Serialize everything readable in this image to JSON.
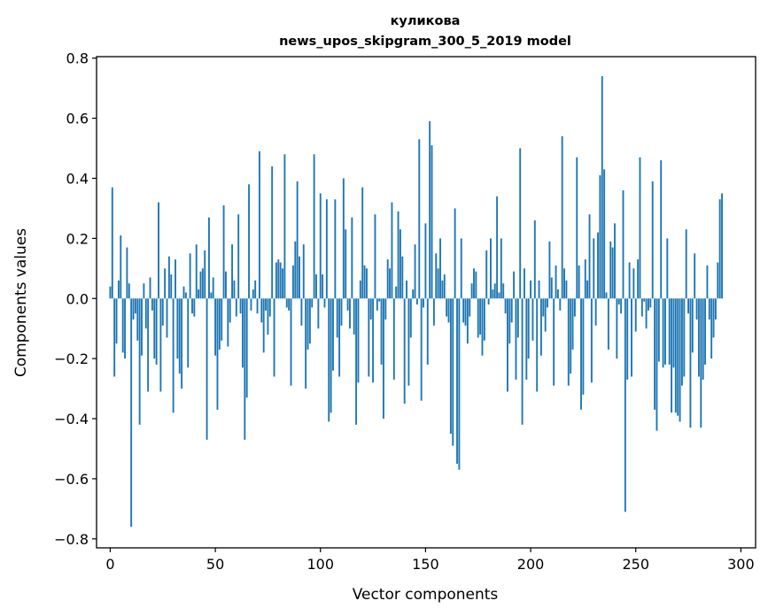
{
  "chart_data": {
    "type": "bar",
    "title_line1": "куликова",
    "title_line2": "news_upos_skipgram_300_5_2019 model",
    "xlabel": "Vector components",
    "ylabel": "Components values",
    "xlim": [
      -6.5,
      307
    ],
    "ylim": [
      -0.83,
      0.805
    ],
    "xticks": [
      0,
      50,
      100,
      150,
      200,
      250,
      300
    ],
    "xtick_labels": [
      "0",
      "50",
      "100",
      "150",
      "200",
      "250",
      "300"
    ],
    "yticks": [
      -0.8,
      -0.6,
      -0.4,
      -0.2,
      0.0,
      0.2,
      0.4,
      0.6,
      0.8
    ],
    "ytick_labels": [
      "−0.8",
      "−0.6",
      "−0.4",
      "−0.2",
      "0.0",
      "0.2",
      "0.4",
      "0.6",
      "0.8"
    ],
    "bar_color": "#1f77b4",
    "bar_width": 0.8,
    "values": [
      0.04,
      0.37,
      -0.26,
      -0.15,
      0.06,
      0.21,
      -0.18,
      -0.2,
      0.17,
      0.05,
      -0.76,
      -0.07,
      -0.05,
      -0.14,
      -0.42,
      -0.19,
      0.05,
      -0.1,
      -0.31,
      0.07,
      -0.04,
      -0.2,
      -0.22,
      0.32,
      -0.31,
      -0.09,
      0.1,
      -0.13,
      0.14,
      0.08,
      -0.38,
      0.13,
      -0.2,
      -0.25,
      -0.3,
      0.04,
      0.02,
      -0.23,
      0.15,
      -0.05,
      -0.06,
      0.18,
      0.03,
      0.09,
      0.1,
      0.16,
      -0.47,
      0.27,
      0.02,
      0.07,
      -0.19,
      -0.37,
      -0.17,
      -0.14,
      0.31,
      0.09,
      -0.16,
      -0.08,
      0.18,
      0.06,
      -0.06,
      0.28,
      -0.05,
      -0.23,
      -0.47,
      -0.33,
      0.38,
      -0.04,
      0.03,
      0.06,
      -0.05,
      0.49,
      -0.08,
      -0.18,
      -0.04,
      -0.12,
      -0.06,
      0.44,
      -0.26,
      0.12,
      0.13,
      0.12,
      0.1,
      0.48,
      -0.03,
      -0.04,
      -0.29,
      0.11,
      0.19,
      0.39,
      0.14,
      -0.09,
      0.18,
      -0.3,
      -0.17,
      -0.15,
      -0.03,
      0.48,
      0.08,
      -0.1,
      0.35,
      0.08,
      -0.03,
      0.33,
      -0.41,
      -0.38,
      -0.24,
      0.33,
      -0.13,
      -0.26,
      -0.09,
      0.4,
      0.23,
      -0.04,
      -0.1,
      0.27,
      -0.12,
      -0.42,
      -0.28,
      0.06,
      0.37,
      0.11,
      0.1,
      -0.26,
      -0.07,
      -0.28,
      0.28,
      -0.04,
      -0.01,
      -0.22,
      -0.4,
      -0.07,
      0.13,
      0.1,
      0.32,
      -0.27,
      0.04,
      0.29,
      0.23,
      0.14,
      -0.35,
      0.06,
      -0.29,
      -0.13,
      0.03,
      0.18,
      -0.02,
      0.53,
      -0.34,
      -0.03,
      0.25,
      -0.22,
      0.59,
      0.51,
      -0.09,
      0.15,
      0.1,
      0.2,
      0.06,
      0.08,
      -0.06,
      -0.08,
      -0.45,
      -0.49,
      0.3,
      -0.55,
      -0.57,
      0.2,
      -0.08,
      -0.09,
      -0.15,
      -0.06,
      0.05,
      0.1,
      0.09,
      -0.13,
      -0.12,
      -0.19,
      -0.14,
      0.16,
      -0.02,
      0.2,
      0.03,
      0.05,
      0.34,
      0.02,
      0.2,
      0.05,
      -0.05,
      -0.31,
      -0.15,
      -0.08,
      0.09,
      -0.27,
      -0.13,
      0.5,
      -0.42,
      0.1,
      -0.27,
      -0.2,
      0.06,
      -0.14,
      0.26,
      -0.31,
      0.06,
      -0.19,
      -0.06,
      -0.11,
      -0.03,
      0.19,
      0.07,
      -0.29,
      0.11,
      0.03,
      -0.04,
      0.54,
      0.1,
      0.06,
      -0.29,
      -0.25,
      -0.17,
      -0.06,
      0.47,
      0.11,
      -0.37,
      -0.32,
      0.13,
      0.06,
      0.28,
      -0.28,
      0.2,
      -0.09,
      0.22,
      0.41,
      0.74,
      0.43,
      0.02,
      -0.17,
      0.19,
      0.17,
      0.25,
      -0.2,
      -0.02,
      -0.05,
      0.36,
      -0.71,
      -0.27,
      0.12,
      -0.26,
      0.1,
      -0.11,
      0.13,
      0.47,
      -0.06,
      -0.01,
      -0.1,
      -0.04,
      -0.03,
      0.39,
      -0.37,
      -0.44,
      -0.21,
      0.46,
      -0.23,
      -0.22,
      0.2,
      -0.22,
      -0.38,
      -0.23,
      -0.38,
      -0.39,
      -0.41,
      -0.29,
      -0.26,
      0.23,
      -0.05,
      -0.43,
      -0.18,
      0.15,
      -0.07,
      -0.26,
      -0.43,
      -0.27,
      -0.22,
      0.11,
      -0.07,
      -0.2,
      -0.13,
      -0.07,
      0.12,
      0.33,
      0.35
    ]
  }
}
